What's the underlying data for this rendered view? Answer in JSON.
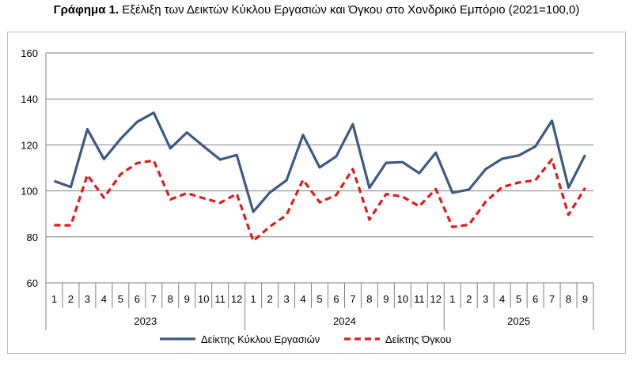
{
  "title": {
    "bold": "Γράφημα 1.",
    "rest": " Εξέλιξη των Δεικτών Κύκλου Εργασιών και Όγκου στο Χονδρικό Εμπόριο (2021=100,0)"
  },
  "colors": {
    "turnover": "#3C5A84",
    "volume": "#E31A1C",
    "grid": "#808080",
    "frame": "#bfbfbf"
  },
  "chart_data": {
    "type": "line",
    "title": "Γράφημα 1. Εξέλιξη των Δεικτών Κύκλου Εργασιών και Όγκου στο Χονδρικό Εμπόριο (2021=100,0)",
    "categories": [
      "1",
      "2",
      "3",
      "4",
      "5",
      "6",
      "7",
      "8",
      "9",
      "10",
      "11",
      "12",
      "1",
      "2",
      "3",
      "4",
      "5",
      "6",
      "7",
      "8",
      "9",
      "10",
      "11",
      "12",
      "1",
      "2",
      "3",
      "4",
      "5",
      "6",
      "7",
      "8",
      "9"
    ],
    "years": [
      {
        "label": "2023",
        "start": 0,
        "end": 11
      },
      {
        "label": "2024",
        "start": 12,
        "end": 23
      },
      {
        "label": "2025",
        "start": 24,
        "end": 32
      }
    ],
    "ylim": [
      60,
      160
    ],
    "yticks": [
      60,
      80,
      100,
      120,
      140,
      160
    ],
    "grid": true,
    "legend": "bottom",
    "series": [
      {
        "name": "Δείκτης Κύκλου Εργασιών",
        "style": "solid",
        "values": [
          104.3,
          101.7,
          126.8,
          113.8,
          122.6,
          130.0,
          134.0,
          118.5,
          125.4,
          119.4,
          113.6,
          115.6,
          90.9,
          99.3,
          104.6,
          124.3,
          110.2,
          115.0,
          129.0,
          101.3,
          112.2,
          112.5,
          107.7,
          116.6,
          99.2,
          100.6,
          109.4,
          114.0,
          115.4,
          119.3,
          130.5,
          101.4,
          115.6
        ]
      },
      {
        "name": "Δείκτης Όγκου",
        "style": "dashed",
        "values": [
          85.1,
          85.0,
          106.9,
          97.0,
          107.2,
          112.1,
          113.2,
          96.3,
          99.0,
          96.8,
          94.8,
          98.7,
          78.2,
          84.5,
          89.5,
          104.8,
          95.0,
          98.2,
          109.5,
          87.5,
          98.6,
          97.5,
          93.3,
          100.8,
          84.3,
          85.3,
          95.2,
          101.7,
          103.6,
          104.6,
          113.7,
          89.6,
          101.3
        ]
      }
    ]
  }
}
